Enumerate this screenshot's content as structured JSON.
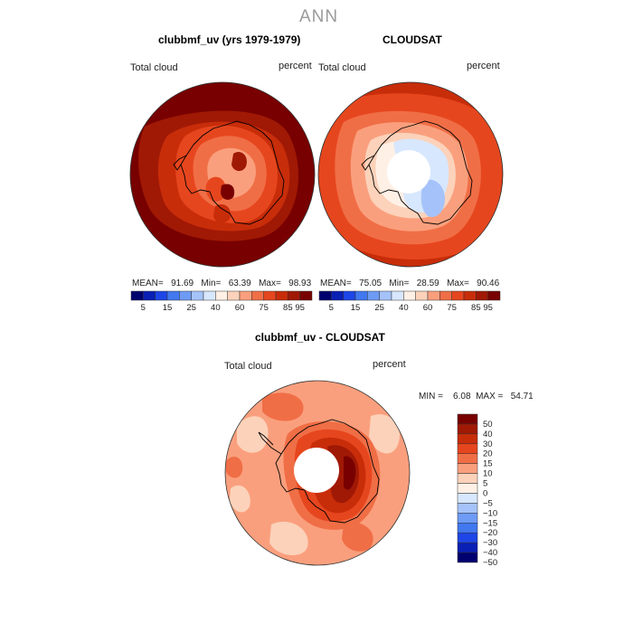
{
  "season": "ANN",
  "panels": [
    {
      "title": "clubbmf_uv (yrs 1979-1979)",
      "left_label": "Total cloud",
      "right_label": "percent",
      "stats": "MEAN=   91.69   Min=   63.39   Max=   98.93",
      "colorbar_labels": [
        "5",
        "15",
        "25",
        "40",
        "60",
        "75",
        "85",
        "95"
      ]
    },
    {
      "title": "CLOUDSAT",
      "left_label": "Total cloud",
      "right_label": "percent",
      "stats": "MEAN=   75.05   Min=   28.59   Max=   90.46",
      "colorbar_labels": [
        "5",
        "15",
        "25",
        "40",
        "60",
        "75",
        "85",
        "95"
      ]
    },
    {
      "title": "clubbmf_uv - CLOUDSAT",
      "left_label": "Total cloud",
      "right_label": "percent",
      "stats": "MIN =    6.08  MAX =   54.71",
      "colorbar_labels": [
        "50",
        "40",
        "30",
        "20",
        "15",
        "10",
        "5",
        "0",
        "−5",
        "−10",
        "−15",
        "−20",
        "−30",
        "−40",
        "−50"
      ]
    }
  ],
  "palettes": {
    "absolute": [
      "#00006e",
      "#0a1fb4",
      "#1e46e6",
      "#4178f0",
      "#6e9bf5",
      "#a5c3fa",
      "#d7e7fd",
      "#fff0e6",
      "#fcd2ba",
      "#fa9f7d",
      "#f06e46",
      "#e6461e",
      "#c82d0a",
      "#a01905",
      "#780000"
    ],
    "difference": [
      "#780000",
      "#a01905",
      "#c82d0a",
      "#e6461e",
      "#f06e46",
      "#fa9f7d",
      "#fcd2ba",
      "#fff0e6",
      "#d7e7fd",
      "#a5c3fa",
      "#6e9bf5",
      "#4178f0",
      "#1e46e6",
      "#0a1fb4",
      "#00006e"
    ]
  },
  "chart_data": [
    {
      "type": "heatmap",
      "projection": "south-polar stereographic",
      "title": "clubbmf_uv (yrs 1979-1979)",
      "variable": "Total cloud",
      "units": "percent",
      "mean": 91.69,
      "min": 63.39,
      "max": 98.93,
      "contour_levels": [
        5,
        10,
        15,
        20,
        25,
        30,
        40,
        50,
        60,
        70,
        75,
        80,
        85,
        90,
        95
      ],
      "description": "ocean 90-98 percent; Antarctic interior 70-85 percent"
    },
    {
      "type": "heatmap",
      "projection": "south-polar stereographic",
      "title": "CLOUDSAT",
      "variable": "Total cloud",
      "units": "percent",
      "mean": 75.05,
      "min": 28.59,
      "max": 90.46,
      "contour_levels": [
        5,
        10,
        15,
        20,
        25,
        30,
        40,
        50,
        60,
        70,
        75,
        80,
        85,
        90,
        95
      ],
      "description": "ocean 80-90 percent; East Antarctic interior 30-50 percent; missing data near pole"
    },
    {
      "type": "heatmap",
      "projection": "south-polar stereographic",
      "title": "clubbmf_uv - CLOUDSAT",
      "variable": "Total cloud",
      "units": "percent",
      "min": 6.08,
      "max": 54.71,
      "contour_levels": [
        -50,
        -40,
        -30,
        -20,
        -15,
        -10,
        -5,
        0,
        5,
        10,
        15,
        20,
        30,
        40,
        50
      ],
      "description": "ocean differences 5-15; Antarctic interior differences 30-54; missing data near pole"
    }
  ]
}
